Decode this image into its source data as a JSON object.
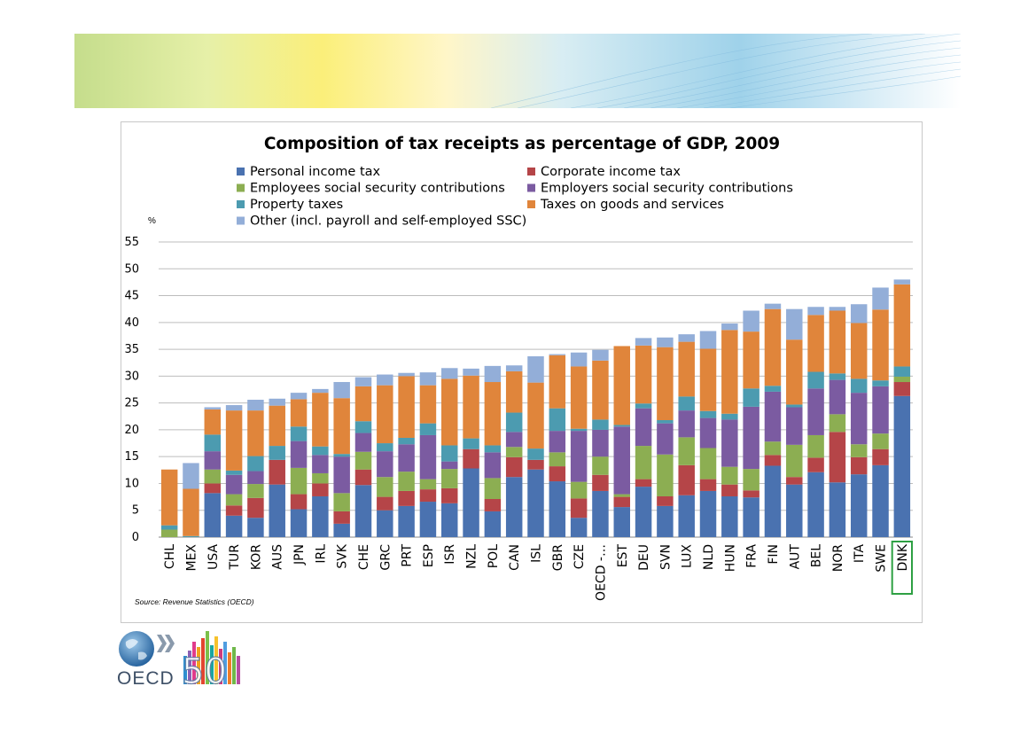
{
  "logo": {
    "text": "OECD",
    "anniversary": "50"
  },
  "chart_data": {
    "type": "bar",
    "stacked": true,
    "title": "Composition of tax receipts as percentage of GDP, 2009",
    "unit": "%",
    "source": "Source: Revenue Statistics (OECD)",
    "ylim": [
      0,
      55
    ],
    "yticks": [
      0,
      5,
      10,
      15,
      20,
      25,
      30,
      35,
      40,
      45,
      50,
      55
    ],
    "grid": true,
    "legend_position": "top",
    "highlight_category": "DNK",
    "highlight_color": "#2ea043",
    "categories": [
      "CHL",
      "MEX",
      "USA",
      "TUR",
      "KOR",
      "AUS",
      "JPN",
      "IRL",
      "SVK",
      "CHE",
      "GRC",
      "PRT",
      "ESP",
      "ISR",
      "NZL",
      "POL",
      "CAN",
      "ISL",
      "GBR",
      "CZE",
      "OECD -…",
      "EST",
      "DEU",
      "SVN",
      "LUX",
      "NLD",
      "HUN",
      "FRA",
      "FIN",
      "AUT",
      "BEL",
      "NOR",
      "ITA",
      "SWE",
      "DNK"
    ],
    "series": [
      {
        "name": "Personal income tax",
        "color": "#4a72b0",
        "values": [
          0,
          0,
          8.2,
          4.0,
          3.6,
          9.8,
          5.2,
          7.6,
          2.5,
          9.7,
          5.0,
          5.8,
          6.6,
          6.3,
          12.8,
          4.8,
          11.2,
          12.6,
          10.4,
          3.6,
          8.6,
          5.6,
          9.4,
          5.8,
          7.8,
          8.6,
          7.6,
          7.4,
          13.3,
          9.8,
          12.1,
          10.2,
          11.7,
          13.4,
          26.3
        ]
      },
      {
        "name": "Corporate income tax",
        "color": "#b54548",
        "values": [
          0,
          0,
          1.8,
          1.9,
          3.7,
          4.6,
          2.8,
          2.4,
          2.3,
          2.9,
          2.5,
          2.8,
          2.3,
          2.8,
          3.6,
          2.3,
          3.7,
          1.8,
          2.8,
          3.6,
          3.0,
          1.9,
          1.4,
          1.8,
          5.6,
          2.2,
          2.2,
          1.3,
          2.0,
          1.4,
          2.7,
          9.4,
          3.2,
          3.0,
          2.6
        ]
      },
      {
        "name": "Employees social security contributions",
        "color": "#8cae52",
        "values": [
          1.4,
          0,
          2.6,
          2.1,
          2.6,
          0,
          4.9,
          1.9,
          3.4,
          3.3,
          3.7,
          3.6,
          1.9,
          3.6,
          0,
          3.9,
          1.9,
          0,
          2.6,
          3.1,
          3.4,
          0.5,
          6.2,
          7.8,
          5.2,
          5.8,
          3.3,
          4.0,
          2.5,
          6.0,
          4.2,
          3.3,
          2.4,
          2.9,
          1.0
        ]
      },
      {
        "name": "Employers social security contributions",
        "color": "#7b5ba1",
        "values": [
          0,
          0,
          3.4,
          3.6,
          2.4,
          0,
          5.0,
          3.4,
          6.8,
          3.5,
          4.8,
          5.1,
          8.2,
          1.4,
          0,
          4.8,
          2.8,
          0,
          4.0,
          9.5,
          5.0,
          12.6,
          7.0,
          5.8,
          5.0,
          5.6,
          8.8,
          11.6,
          9.3,
          7.0,
          8.7,
          6.4,
          9.6,
          8.8,
          0
        ]
      },
      {
        "name": "Property taxes",
        "color": "#4c9bb0",
        "values": [
          0.8,
          0.2,
          3.1,
          0.8,
          2.8,
          2.6,
          2.7,
          1.6,
          0.5,
          2.2,
          1.5,
          1.2,
          2.2,
          3.0,
          2.0,
          1.3,
          3.6,
          2.1,
          4.2,
          0.4,
          1.9,
          0.3,
          0.9,
          0.6,
          2.6,
          1.3,
          1.1,
          3.4,
          1.1,
          0.5,
          3.1,
          1.2,
          2.6,
          1.1,
          1.9
        ]
      },
      {
        "name": "Taxes on goods and services",
        "color": "#e0853b",
        "values": [
          10.4,
          8.8,
          4.7,
          11.2,
          8.5,
          7.5,
          5.1,
          10.0,
          10.4,
          6.5,
          10.8,
          11.5,
          7.1,
          12.4,
          11.7,
          11.8,
          7.7,
          12.3,
          9.9,
          11.6,
          11.0,
          14.7,
          10.8,
          13.6,
          10.2,
          11.6,
          15.6,
          10.6,
          14.3,
          12.1,
          10.6,
          11.7,
          10.4,
          13.2,
          15.3
        ]
      },
      {
        "name": "Other (incl. payroll and self-employed SSC)",
        "color": "#93aed8",
        "values": [
          0,
          4.8,
          0.4,
          1.0,
          2.0,
          1.3,
          1.2,
          0.7,
          3.0,
          1.7,
          2.0,
          0.6,
          2.4,
          2.0,
          1.3,
          3.0,
          1.1,
          4.9,
          0.2,
          2.6,
          2.0,
          0,
          1.4,
          1.8,
          1.4,
          3.3,
          1.2,
          3.9,
          1.0,
          5.7,
          1.5,
          0.7,
          3.5,
          4.1,
          0.9
        ]
      }
    ]
  }
}
